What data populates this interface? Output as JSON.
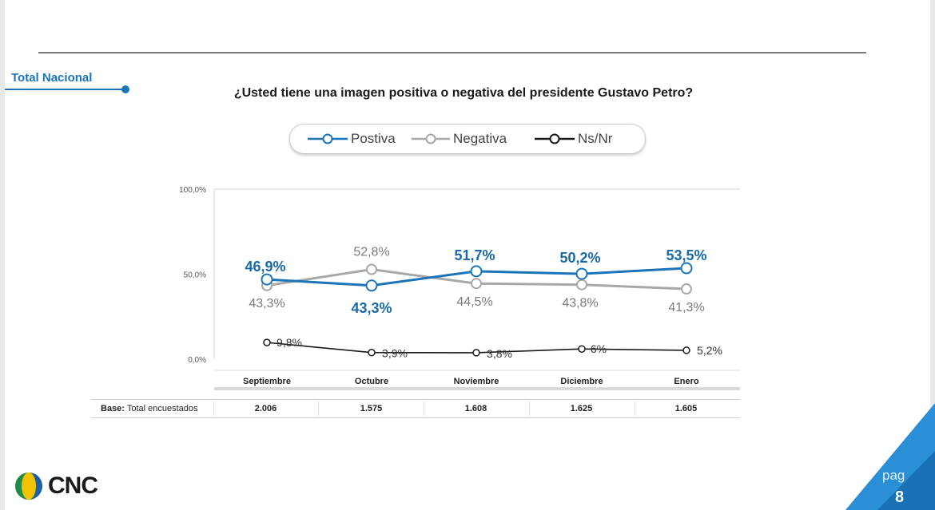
{
  "header": {
    "section_label": "Total Nacional",
    "question": "¿Usted tiene una imagen positiva o negativa del presidente Gustavo Petro?"
  },
  "legend": [
    {
      "label": "Postiva",
      "color": "#1b75b8"
    },
    {
      "label": "Negativa",
      "color": "#a8a8a8"
    },
    {
      "label": "Ns/Nr",
      "color": "#1a1a1a"
    }
  ],
  "chart_data": {
    "type": "line",
    "categories": [
      "Septiembre",
      "Octubre",
      "Noviembre",
      "Diciembre",
      "Enero"
    ],
    "ylim": [
      0,
      100
    ],
    "yticks": [
      "0,0%",
      "50,0%",
      "100,0%"
    ],
    "series": [
      {
        "name": "Postiva",
        "color": "#1b75b8",
        "values": [
          46.9,
          43.3,
          51.7,
          50.2,
          53.5
        ],
        "labels": [
          "46,9%",
          "43,3%",
          "51,7%",
          "50,2%",
          "53,5%"
        ]
      },
      {
        "name": "Negativa",
        "color": "#a8a8a8",
        "values": [
          43.3,
          52.8,
          44.5,
          43.8,
          41.3
        ],
        "labels": [
          "43,3%",
          "52,8%",
          "44,5%",
          "43,8%",
          "41,3%"
        ]
      },
      {
        "name": "Ns/Nr",
        "color": "#1a1a1a",
        "values": [
          9.8,
          3.9,
          3.8,
          6,
          5.2
        ],
        "labels": [
          "9,8%",
          "3,9%",
          "3,8%",
          "6%",
          "5,2%"
        ]
      }
    ],
    "gridlines": false
  },
  "base": {
    "label_bold": "Base:",
    "label_rest": " Total encuestados",
    "values": [
      "2.006",
      "1.575",
      "1.608",
      "1.625",
      "1.605"
    ]
  },
  "footer": {
    "logo_text": "CNC",
    "page_label": "pag",
    "page_number": "8"
  },
  "colors": {
    "accent": "#1b75b8",
    "corner_light": "#2a8fd6",
    "corner_dark": "#1466a8"
  }
}
